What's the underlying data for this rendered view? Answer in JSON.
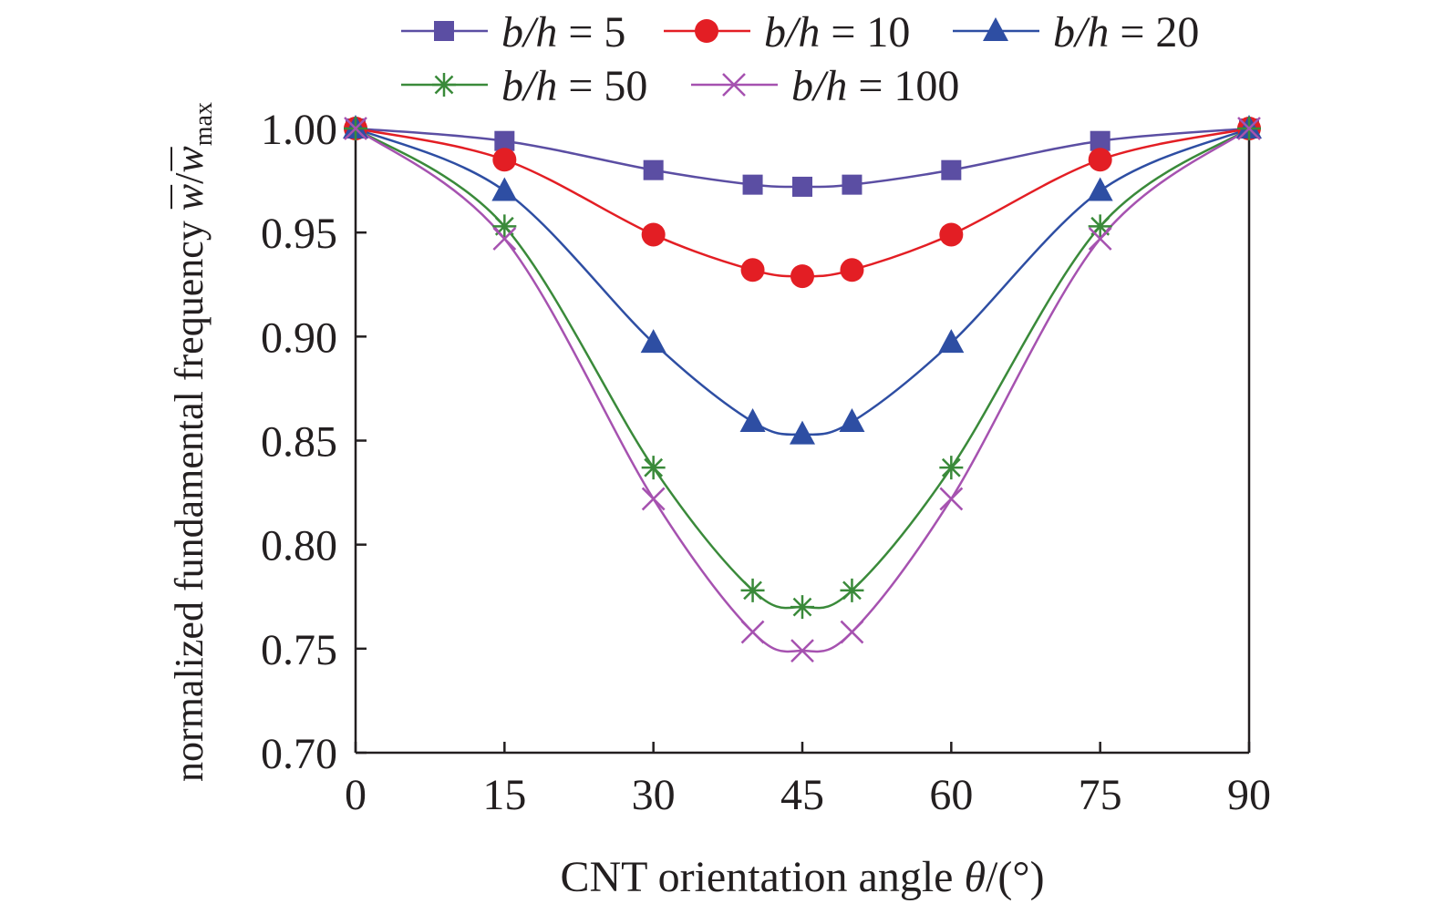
{
  "chart_data": {
    "type": "line",
    "title": "",
    "xlabel": {
      "prefix": "CNT orientation angle ",
      "symbol": "θ",
      "suffix": "/(°)"
    },
    "ylabel": {
      "prefix": "normalized fundamental frequency ",
      "symbol_num": "w",
      "slash": "/",
      "symbol_den": "w",
      "subscript": "max"
    },
    "xlim": [
      0,
      90
    ],
    "ylim": [
      0.7,
      1.0
    ],
    "xticks": [
      0,
      15,
      30,
      45,
      60,
      75,
      90
    ],
    "xtick_labels": [
      "0",
      "15",
      "30",
      "45",
      "60",
      "75",
      "90"
    ],
    "yticks": [
      0.7,
      0.75,
      0.8,
      0.85,
      0.9,
      0.95,
      1.0
    ],
    "ytick_labels": [
      "0.70",
      "0.75",
      "0.80",
      "0.85",
      "0.90",
      "0.95",
      "1.00"
    ],
    "grid": false,
    "legend_position": "top",
    "x": [
      0,
      15,
      30,
      40,
      45,
      50,
      60,
      75,
      90
    ],
    "series": [
      {
        "name": "b/h = 5",
        "name_parts": {
          "var": "b/h",
          "value": " = 5"
        },
        "color": "#5b4ea3",
        "marker": "square",
        "values": [
          1.0,
          0.994,
          0.98,
          0.973,
          0.972,
          0.973,
          0.98,
          0.994,
          1.0
        ]
      },
      {
        "name": "b/h = 10",
        "name_parts": {
          "var": "b/h",
          "value": " = 10"
        },
        "color": "#e31e24",
        "marker": "circle",
        "values": [
          1.0,
          0.985,
          0.949,
          0.932,
          0.929,
          0.932,
          0.949,
          0.985,
          1.0
        ]
      },
      {
        "name": "b/h = 20",
        "name_parts": {
          "var": "b/h",
          "value": " = 20"
        },
        "color": "#2e4ea3",
        "marker": "triangle",
        "values": [
          1.0,
          0.97,
          0.897,
          0.859,
          0.853,
          0.859,
          0.897,
          0.97,
          1.0
        ]
      },
      {
        "name": "b/h = 50",
        "name_parts": {
          "var": "b/h",
          "value": " = 50"
        },
        "color": "#3a8a3a",
        "marker": "asterisk",
        "values": [
          1.0,
          0.953,
          0.837,
          0.778,
          0.77,
          0.778,
          0.837,
          0.953,
          1.0
        ]
      },
      {
        "name": "b/h = 100",
        "name_parts": {
          "var": "b/h",
          "value": " = 100"
        },
        "color": "#a652b0",
        "marker": "x",
        "values": [
          1.0,
          0.947,
          0.822,
          0.758,
          0.749,
          0.758,
          0.822,
          0.947,
          1.0
        ]
      }
    ]
  }
}
